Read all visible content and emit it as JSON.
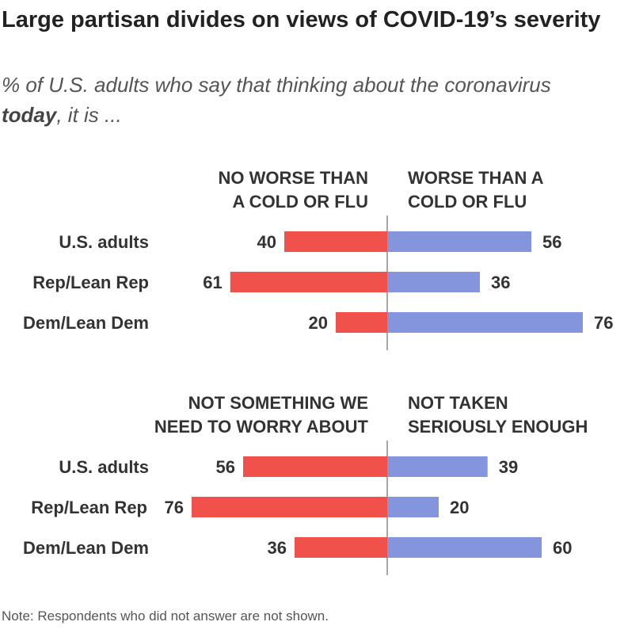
{
  "title": "Large partisan divides on views of COVID-19’s severity",
  "subtitle": {
    "before": "% of U.S. adults who say that thinking about the coronavirus ",
    "emphasis": "today",
    "after": ", it is ..."
  },
  "note": "Note: Respondents who did not answer are not shown.",
  "colors": {
    "left": "#f0514b",
    "right": "#8595dd",
    "axis": "#888888"
  },
  "chart_data": [
    {
      "type": "bar",
      "orientation": "diverging",
      "left_label": [
        "NO WORSE THAN",
        "A COLD OR FLU"
      ],
      "right_label": [
        "WORSE THAN A",
        "COLD OR FLU"
      ],
      "categories": [
        "U.S. adults",
        "Rep/Lean Rep",
        "Dem/Lean Dem"
      ],
      "series": [
        {
          "name": "No worse than a cold or flu",
          "values": [
            40,
            61,
            20
          ]
        },
        {
          "name": "Worse than a cold or flu",
          "values": [
            56,
            36,
            76
          ]
        }
      ]
    },
    {
      "type": "bar",
      "orientation": "diverging",
      "left_label": [
        "NOT SOMETHING WE",
        "NEED TO WORRY ABOUT"
      ],
      "right_label": [
        "NOT TAKEN",
        "SERIOUSLY ENOUGH"
      ],
      "categories": [
        "U.S. adults",
        "Rep/Lean Rep",
        "Dem/Lean Dem"
      ],
      "series": [
        {
          "name": "Not something we need to worry about",
          "values": [
            56,
            76,
            36
          ]
        },
        {
          "name": "Not taken seriously enough",
          "values": [
            39,
            20,
            60
          ]
        }
      ]
    }
  ]
}
